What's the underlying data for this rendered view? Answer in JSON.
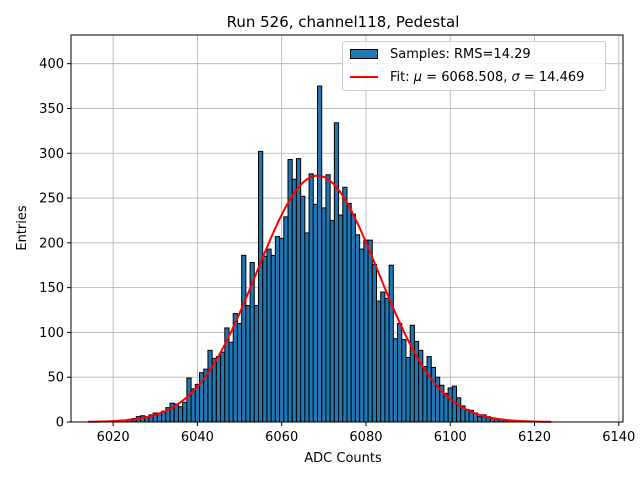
{
  "chart_data": {
    "type": "bar",
    "title": "Run 526, channel118, Pedestal",
    "xlabel": "ADC Counts",
    "ylabel": "Entries",
    "xlim": [
      6010,
      6141
    ],
    "ylim": [
      0,
      432
    ],
    "xticks": [
      6020,
      6040,
      6060,
      6080,
      6100,
      6120,
      6140
    ],
    "yticks": [
      0,
      50,
      100,
      150,
      200,
      250,
      300,
      350,
      400
    ],
    "grid": true,
    "legend_position": "top-right",
    "bin_width": 1,
    "series": [
      {
        "name": "Samples: RMS=14.29",
        "kind": "histogram",
        "color": "#1f77b4",
        "x": [
          6021,
          6022,
          6023,
          6024,
          6025,
          6026,
          6027,
          6028,
          6029,
          6030,
          6031,
          6032,
          6033,
          6034,
          6035,
          6036,
          6037,
          6038,
          6039,
          6040,
          6041,
          6042,
          6043,
          6044,
          6045,
          6046,
          6047,
          6048,
          6049,
          6050,
          6051,
          6052,
          6053,
          6054,
          6055,
          6056,
          6057,
          6058,
          6059,
          6060,
          6061,
          6062,
          6063,
          6064,
          6065,
          6066,
          6067,
          6068,
          6069,
          6070,
          6071,
          6072,
          6073,
          6074,
          6075,
          6076,
          6077,
          6078,
          6079,
          6080,
          6081,
          6082,
          6083,
          6084,
          6085,
          6086,
          6087,
          6088,
          6089,
          6090,
          6091,
          6092,
          6093,
          6094,
          6095,
          6096,
          6097,
          6098,
          6099,
          6100,
          6101,
          6102,
          6103,
          6104,
          6105,
          6106,
          6107,
          6108,
          6109,
          6110,
          6111,
          6112,
          6113,
          6114,
          6115
        ],
        "values": [
          1,
          2,
          2,
          3,
          4,
          6,
          7,
          6,
          8,
          10,
          10,
          12,
          16,
          21,
          20,
          17,
          22,
          49,
          37,
          42,
          55,
          59,
          80,
          71,
          73,
          78,
          105,
          89,
          121,
          110,
          186,
          130,
          178,
          130,
          302,
          185,
          193,
          186,
          207,
          205,
          229,
          293,
          271,
          294,
          252,
          211,
          277,
          243,
          375,
          239,
          276,
          225,
          334,
          231,
          262,
          244,
          232,
          209,
          193,
          203,
          203,
          176,
          135,
          145,
          138,
          175,
          93,
          110,
          92,
          72,
          108,
          90,
          80,
          62,
          73,
          61,
          50,
          41,
          32,
          38,
          40,
          27,
          18,
          14,
          13,
          10,
          6,
          8,
          6,
          4,
          3,
          3,
          2,
          2,
          1
        ]
      }
    ],
    "fit": {
      "name_prefix": "Fit: ",
      "mu_label": "μ",
      "mu_text": " = 6068.508, ",
      "sigma_label": "σ",
      "sigma_text": " = 14.469",
      "color": "#ff0000",
      "type": "gaussian",
      "mu": 6068.508,
      "sigma": 14.469,
      "amplitude": 275,
      "x_range": [
        6014,
        6124
      ]
    }
  }
}
